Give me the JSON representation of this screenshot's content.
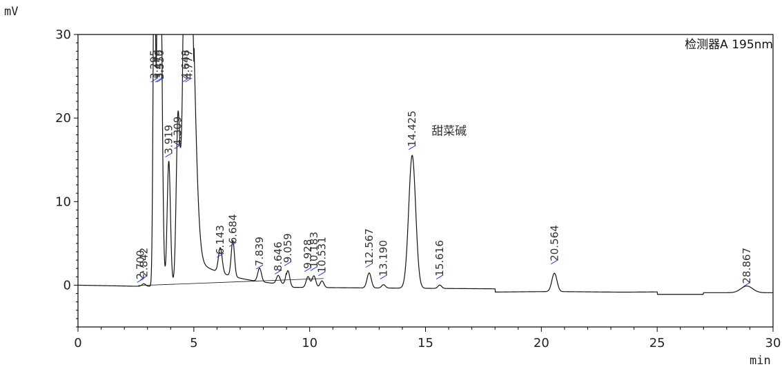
{
  "chart_data": {
    "type": "line",
    "title": "",
    "detector_label": "检测器A 195nm",
    "xlabel": "min",
    "ylabel": "mV",
    "xlim": [
      0,
      30
    ],
    "ylim": [
      -5,
      30
    ],
    "x_ticks": [
      0,
      5,
      10,
      15,
      20,
      25,
      30
    ],
    "y_ticks": [
      0,
      10,
      20,
      30
    ],
    "grid": false,
    "peaks": [
      {
        "rt": 2.7,
        "height": 0.0,
        "label": "2.700"
      },
      {
        "rt": 2.842,
        "height": 0.3,
        "label": "2.842"
      },
      {
        "rt": 3.295,
        "height": 45.0,
        "label": "3.295"
      },
      {
        "rt": 3.479,
        "height": 45.0,
        "label": "3.479"
      },
      {
        "rt": 3.55,
        "height": 40.0,
        "label": "3.550"
      },
      {
        "rt": 3.919,
        "height": 15.0,
        "label": "3.919"
      },
      {
        "rt": 4.309,
        "height": 16.0,
        "label": "4.309"
      },
      {
        "rt": 4.648,
        "height": 45.0,
        "label": "4.648"
      },
      {
        "rt": 4.777,
        "height": 45.0,
        "label": "4.777"
      },
      {
        "rt": 6.143,
        "height": 3.0,
        "label": "6.143"
      },
      {
        "rt": 6.684,
        "height": 4.3,
        "label": "6.684"
      },
      {
        "rt": 7.839,
        "height": 1.6,
        "label": "7.839"
      },
      {
        "rt": 8.646,
        "height": 1.0,
        "label": "8.646"
      },
      {
        "rt": 9.059,
        "height": 2.0,
        "label": "9.059"
      },
      {
        "rt": 9.928,
        "height": 1.3,
        "label": "9.928"
      },
      {
        "rt": 10.183,
        "height": 1.4,
        "label": "10.183"
      },
      {
        "rt": 10.531,
        "height": 0.8,
        "label": "10.531"
      },
      {
        "rt": 12.567,
        "height": 1.8,
        "label": "12.567"
      },
      {
        "rt": 13.19,
        "height": 0.4,
        "label": "13.190"
      },
      {
        "rt": 14.425,
        "height": 15.9,
        "label": "14.425"
      },
      {
        "rt": 15.616,
        "height": 0.4,
        "label": "15.616"
      },
      {
        "rt": 20.564,
        "height": 2.2,
        "label": "20.564"
      },
      {
        "rt": 28.867,
        "height": -0.5,
        "label": "28.867"
      }
    ],
    "annotations": [
      {
        "text": "甜菜碱",
        "rt": 14.425
      }
    ],
    "colors": {
      "trace": "#111111",
      "marker": "#1f3fd6",
      "axis": "#000000"
    }
  }
}
